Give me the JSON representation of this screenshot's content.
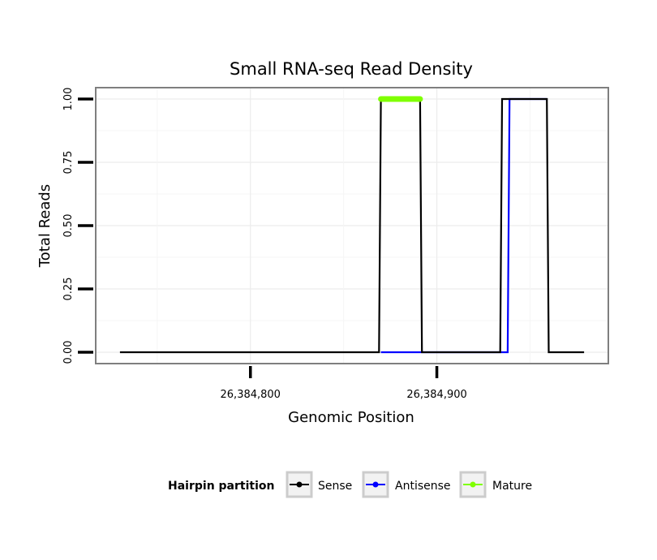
{
  "chart_data": {
    "type": "line",
    "title": "Small RNA-seq Read Density",
    "xlabel": "Genomic Position",
    "ylabel": "Total Reads",
    "xlim": [
      26384717,
      26384992
    ],
    "ylim": [
      -0.045,
      1.045
    ],
    "xticks": [
      26384800,
      26384900
    ],
    "xtick_labels": [
      "26,384,800",
      "26,384,900"
    ],
    "yticks": [
      0,
      0.25,
      0.5,
      0.75,
      1.0
    ],
    "ytick_labels": [
      "0.00",
      "0.25",
      "0.50",
      "0.75",
      "1.00"
    ],
    "grid": true,
    "series": [
      {
        "name": "Sense",
        "color": "#000000",
        "x": [
          26384730,
          26384869,
          26384870,
          26384891,
          26384892,
          26384934,
          26384935,
          26384959,
          26384960,
          26384979
        ],
        "y": [
          0,
          0,
          1,
          1,
          0,
          0,
          1,
          1,
          0,
          0
        ]
      },
      {
        "name": "Antisense",
        "color": "#0000ff",
        "x": [
          26384870,
          26384891,
          26384934,
          26384938,
          26384939,
          26384959
        ],
        "y": [
          0,
          0,
          0,
          0,
          1,
          1
        ]
      },
      {
        "name": "Mature",
        "color": "#7fff00",
        "x": [
          26384870,
          26384891
        ],
        "y": [
          1,
          1
        ]
      }
    ],
    "legend": {
      "title": "Hairpin partition",
      "position": "bottom",
      "entries": [
        "Sense",
        "Antisense",
        "Mature"
      ]
    }
  }
}
